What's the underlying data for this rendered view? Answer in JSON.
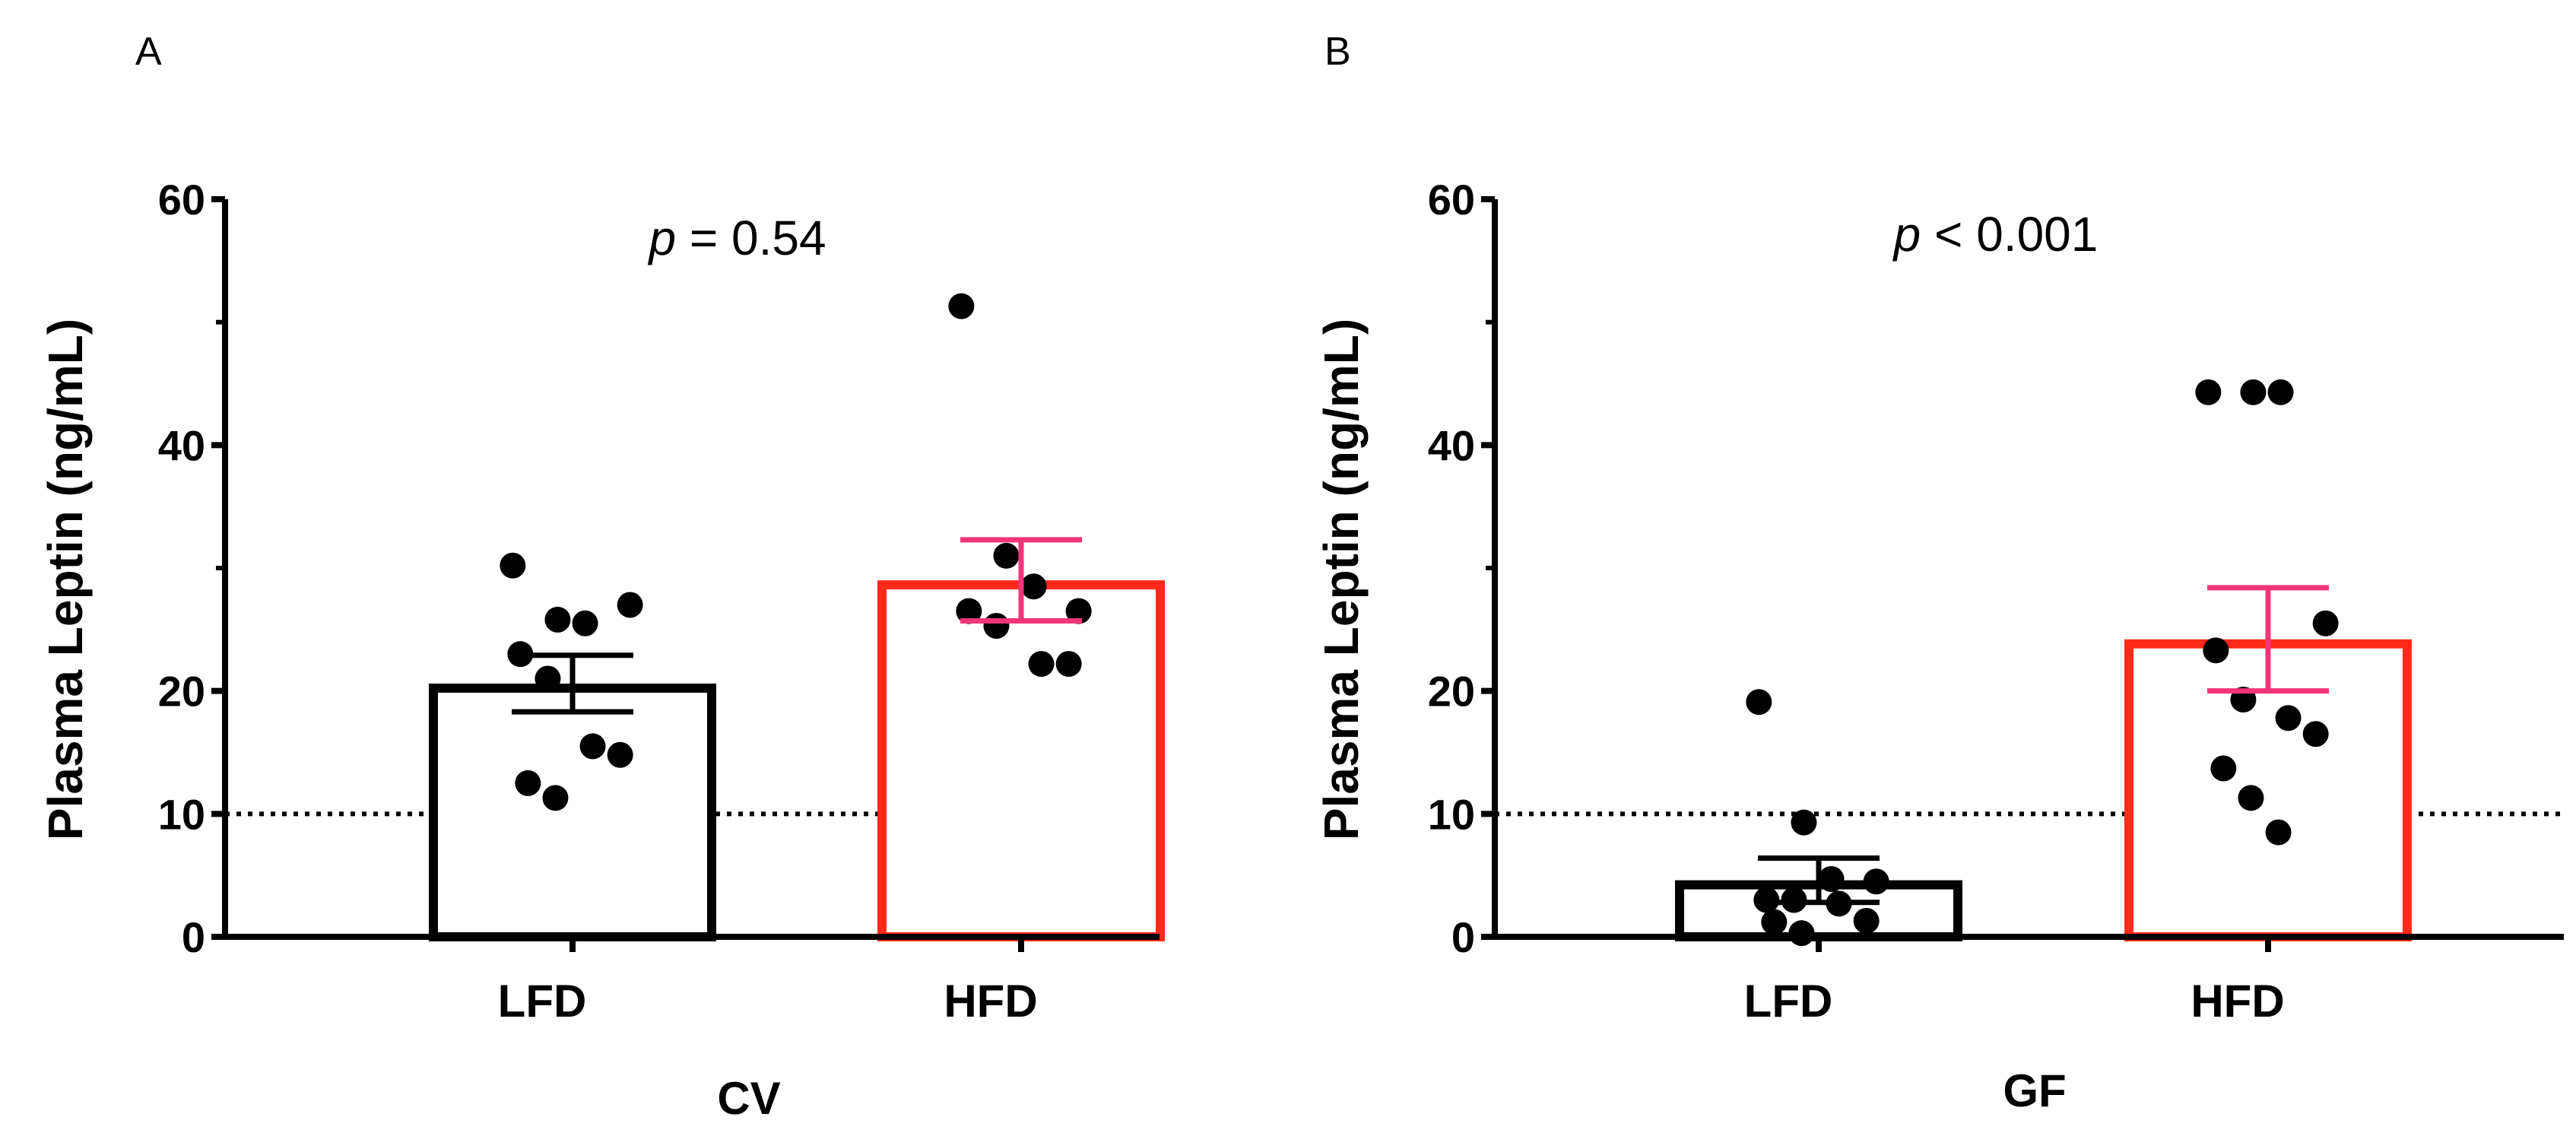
{
  "chart_data": [
    {
      "type": "bar",
      "panel_label": "A",
      "title": "",
      "ylabel": "Plasma Leptin (ng/mL)",
      "xlabel": "CV",
      "ylim": [
        0,
        60
      ],
      "yticks": [
        "0",
        "10",
        "20",
        "40",
        "60"
      ],
      "ytick_values": [
        0,
        10,
        20,
        40,
        60
      ],
      "reference_line": 10,
      "annotation": {
        "italic": "p",
        "rest": " = 0.54"
      },
      "categories": [
        "LFD",
        "HFD"
      ],
      "values": [
        20.6,
        29.0
      ],
      "errors": [
        2.3,
        3.3
      ],
      "colors": [
        "#000000",
        "#ff2a1a"
      ],
      "error_colors": [
        "#000000",
        "#f2347a"
      ],
      "points": [
        [
          30.2,
          25.8,
          25.5,
          27.0,
          23.0,
          21.0,
          15.5,
          14.8,
          12.5,
          11.3
        ],
        [
          51.3,
          31.0,
          28.5,
          26.5,
          26.5,
          25.3,
          22.2,
          22.2
        ]
      ]
    },
    {
      "type": "bar",
      "panel_label": "B",
      "title": "",
      "ylabel": "Plasma Leptin (ng/mL)",
      "xlabel": "GF",
      "ylim": [
        0,
        60
      ],
      "yticks": [
        "0",
        "10",
        "20",
        "40",
        "60"
      ],
      "ytick_values": [
        0,
        10,
        20,
        40,
        60
      ],
      "reference_line": 10,
      "annotation": {
        "italic": "p",
        "rest": " < 0.001"
      },
      "categories": [
        "LFD",
        "HFD"
      ],
      "values": [
        4.6,
        24.2
      ],
      "errors": [
        1.8,
        4.2
      ],
      "colors": [
        "#000000",
        "#ff2a1a"
      ],
      "error_colors": [
        "#000000",
        "#f2347a"
      ],
      "points": [
        [
          19.1,
          9.3,
          4.7,
          4.5,
          3.0,
          3.0,
          2.7,
          1.3,
          1.2,
          0.3
        ],
        [
          44.3,
          44.3,
          44.3,
          25.5,
          23.3,
          19.3,
          17.8,
          16.5,
          13.7,
          11.3,
          8.5
        ]
      ]
    }
  ]
}
